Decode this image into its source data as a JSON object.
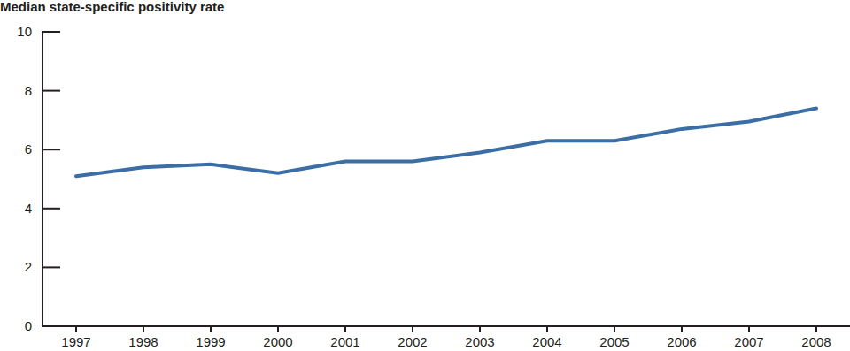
{
  "chart_data": {
    "type": "line",
    "title": "Median state-specific positivity rate",
    "categories": [
      "1997",
      "1998",
      "1999",
      "2000",
      "2001",
      "2002",
      "2003",
      "2004",
      "2005",
      "2006",
      "2007",
      "2008"
    ],
    "values": [
      5.1,
      5.4,
      5.5,
      5.2,
      5.6,
      5.6,
      5.9,
      6.3,
      6.3,
      6.7,
      6.95,
      7.4
    ],
    "color": "#3a6ea5",
    "ylim": [
      0,
      10
    ],
    "yticks": [
      0,
      2,
      4,
      6,
      8,
      10
    ],
    "grid": false
  }
}
